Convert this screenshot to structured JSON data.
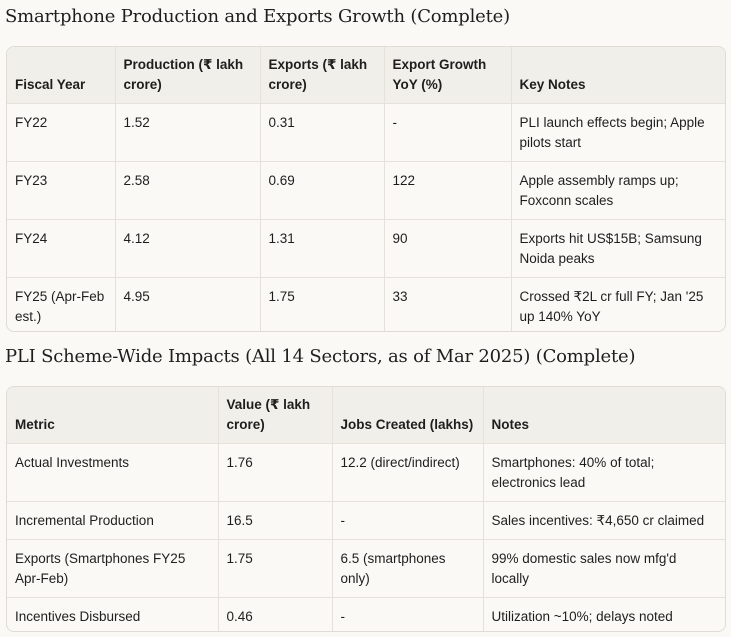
{
  "section1": {
    "title": "Smartphone Production and Exports Growth (Complete)",
    "headers": [
      "Fiscal Year",
      "Production (₹ lakh crore)",
      "Exports (₹ lakh crore)",
      "Export Growth YoY (%)",
      "Key Notes"
    ],
    "rows": [
      [
        "FY22",
        "1.52",
        "0.31",
        "-",
        "PLI launch effects begin; Apple pilots start"
      ],
      [
        "FY23",
        "2.58",
        "0.69",
        "122",
        "Apple assembly ramps up; Foxconn scales"
      ],
      [
        "FY24",
        "4.12",
        "1.31",
        "90",
        "Exports hit US$15B; Samsung Noida peaks"
      ],
      [
        "FY25 (Apr-Feb est.)",
        "4.95",
        "1.75",
        "33",
        "Crossed ₹2L cr full FY; Jan '25 up 140% YoY"
      ]
    ]
  },
  "section2": {
    "title": "PLI Scheme-Wide Impacts (All 14 Sectors, as of Mar 2025) (Complete)",
    "headers": [
      "Metric",
      "Value (₹ lakh crore)",
      "Jobs Created (lakhs)",
      "Notes"
    ],
    "rows": [
      [
        "Actual Investments",
        "1.76",
        "12.2 (direct/indirect)",
        "Smartphones: 40% of total; electronics lead"
      ],
      [
        "Incremental Production",
        "16.5",
        "-",
        "Sales incentives: ₹4,650 cr claimed"
      ],
      [
        "Exports (Smartphones FY25 Apr-Feb)",
        "1.75",
        "6.5 (smartphones only)",
        "99% domestic sales now mfg'd locally"
      ],
      [
        "Incentives Disbursed",
        "0.46",
        "-",
        "Utilization ~10%; delays noted"
      ]
    ]
  }
}
